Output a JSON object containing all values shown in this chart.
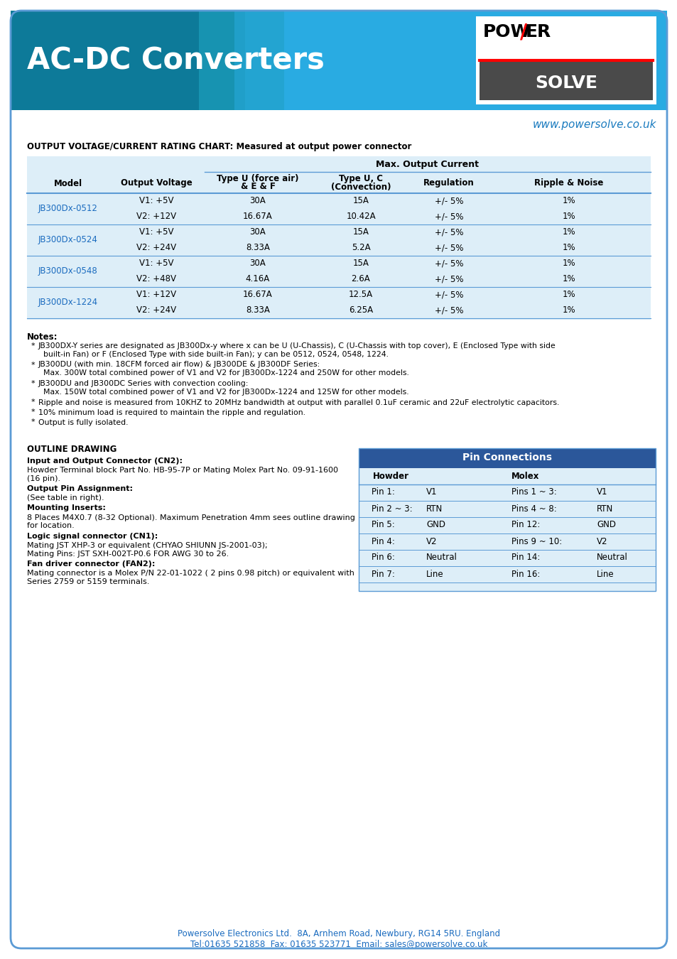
{
  "page_bg": "#ffffff",
  "border_color": "#5b9bd5",
  "header_bg": "#29abe2",
  "header_text": "AC-DC Converters",
  "header_text_color": "#ffffff",
  "website_text": "www.powersolve.co.uk",
  "website_color": "#1a7bbf",
  "section_title": "OUTPUT VOLTAGE/CURRENT RATING CHART: Measured at output power connector",
  "table_outer_bg": "#ddeef8",
  "table_line_color": "#5b9bd5",
  "col_headers": [
    "Model",
    "Output Voltage",
    "Type U (force air)\n& E & F",
    "Type U, C\n(Convection)",
    "Regulation",
    "Ripple & Noise"
  ],
  "max_output_header": "Max. Output Current",
  "model_color": "#1a6bbf",
  "models": [
    {
      "name": "JB300Dx-0512",
      "rows": [
        [
          "V1: +5V",
          "30A",
          "15A",
          "+/- 5%",
          "1%"
        ],
        [
          "V2: +12V",
          "16.67A",
          "10.42A",
          "+/- 5%",
          "1%"
        ]
      ]
    },
    {
      "name": "JB300Dx-0524",
      "rows": [
        [
          "V1: +5V",
          "30A",
          "15A",
          "+/- 5%",
          "1%"
        ],
        [
          "V2: +24V",
          "8.33A",
          "5.2A",
          "+/- 5%",
          "1%"
        ]
      ]
    },
    {
      "name": "JB300Dx-0548",
      "rows": [
        [
          "V1: +5V",
          "30A",
          "15A",
          "+/- 5%",
          "1%"
        ],
        [
          "V2: +48V",
          "4.16A",
          "2.6A",
          "+/- 5%",
          "1%"
        ]
      ]
    },
    {
      "name": "JB300Dx-1224",
      "rows": [
        [
          "V1: +12V",
          "16.67A",
          "12.5A",
          "+/- 5%",
          "1%"
        ],
        [
          "V2: +24V",
          "8.33A",
          "6.25A",
          "+/- 5%",
          "1%"
        ]
      ]
    }
  ],
  "notes_title": "Notes:",
  "notes": [
    "JB300DX-Y series are designated as JB300Dx-y where x can be U (U-Chassis), C (U-Chassis with top cover), E (Enclosed Type with side\n  built-in Fan) or F (Enclosed Type with side built-in Fan); y can be 0512, 0524, 0548, 1224.",
    "JB300DU (with min. 18CFM forced air flow) & JB300DE & JB300DF Series:\n  Max. 300W total combined power of V1 and V2 for JB300Dx-1224 and 250W for other models.",
    "JB300DU and JB300DC Series with convection cooling:\n  Max. 150W total combined power of V1 and V2 for JB300Dx-1224 and 125W for other models.",
    "Ripple and noise is measured from 10KHZ to 20MHz bandwidth at output with parallel 0.1uF ceramic and 22uF electrolytic capacitors.",
    "10% minimum load is required to maintain the ripple and regulation.",
    "Output is fully isolated."
  ],
  "outline_title": "OUTLINE DRAWING",
  "connector_text": [
    [
      "bold",
      "Input and Output Connector (CN2):"
    ],
    [
      "normal",
      "Howder Terminal block Part No. HB-95-7P or Mating Molex Part No. 09-91-1600\n(16 pin)."
    ],
    [
      "bold",
      "Output Pin Assignment:"
    ],
    [
      "normal",
      "(See table in right)."
    ],
    [
      "bold",
      "Mounting Inserts:"
    ],
    [
      "normal",
      "8 Places M4X0.7 (8-32 Optional). Maximum Penetration 4mm sees outline drawing\nfor location."
    ],
    [
      "bold",
      "Logic signal connector (CN1):"
    ],
    [
      "normal",
      "Mating JST XHP-3 or equivalent (CHYAO SHIUNN JS-2001-03);\nMating Pins: JST SXH-002T-P0.6 FOR AWG 30 to 26."
    ],
    [
      "bold",
      "Fan driver connector (FAN2):"
    ],
    [
      "normal",
      "Mating connector is a Molex P/N 22-01-1022 ( 2 pins 0.98 pitch) or equivalent with\nSeries 2759 or 5159 terminals."
    ]
  ],
  "pin_table_header": "Pin Connections",
  "pin_table_header_bg": "#2b579a",
  "pin_table_header_color": "#ffffff",
  "pin_table_bg": "#ddeef8",
  "pin_rows": [
    [
      "Pin 1:",
      "V1",
      "Pins 1 ~ 3:",
      "V1"
    ],
    [
      "Pin 2 ~ 3:",
      "RTN",
      "Pins 4 ~ 8:",
      "RTN"
    ],
    [
      "Pin 5:",
      "GND",
      "Pin 12:",
      "GND"
    ],
    [
      "Pin 4:",
      "V2",
      "Pins 9 ~ 10:",
      "V2"
    ],
    [
      "Pin 6:",
      "Neutral",
      "Pin 14:",
      "Neutral"
    ],
    [
      "Pin 7:",
      "Line",
      "Pin 16:",
      "Line"
    ]
  ],
  "footer_text1": "Powersolve Electronics Ltd.  8A, Arnhem Road, Newbury, RG14 5RU. England",
  "footer_text2": "Tel:01635 521858  Fax: 01635 523771  Email: sales@powersolve.co.uk",
  "footer_color": "#1a6bbf"
}
